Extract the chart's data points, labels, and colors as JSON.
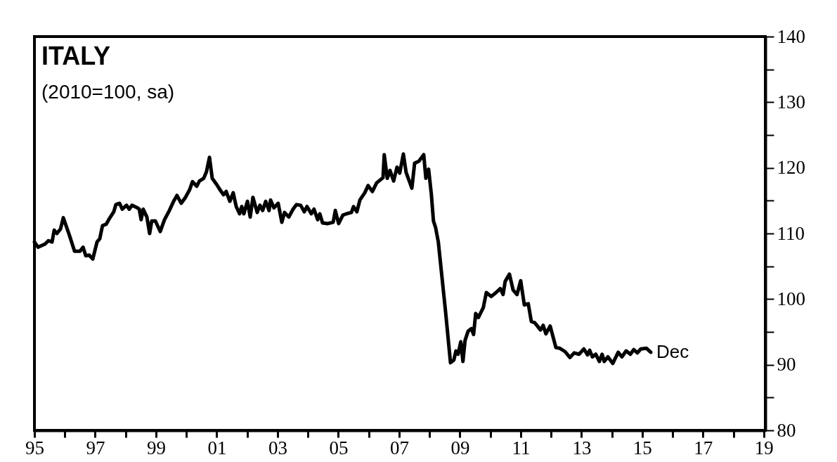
{
  "chart_data": {
    "type": "line",
    "title": "ITALY",
    "subtitle": "(2010=100, sa)",
    "x": [
      1995.0,
      1995.12,
      1995.35,
      1995.46,
      1995.58,
      1995.65,
      1995.74,
      1995.86,
      1995.95,
      1996.16,
      1996.32,
      1996.5,
      1996.6,
      1996.69,
      1996.8,
      1996.92,
      1997.06,
      1997.15,
      1997.24,
      1997.36,
      1997.47,
      1997.61,
      1997.68,
      1997.8,
      1997.89,
      1998.03,
      1998.12,
      1998.21,
      1998.35,
      1998.45,
      1998.51,
      1998.58,
      1998.7,
      1998.79,
      1998.86,
      1998.98,
      1999.14,
      1999.28,
      1999.44,
      1999.58,
      1999.69,
      1999.83,
      1999.97,
      2000.11,
      2000.2,
      2000.34,
      2000.43,
      2000.57,
      2000.66,
      2000.76,
      2000.85,
      2000.99,
      2001.1,
      2001.22,
      2001.31,
      2001.43,
      2001.54,
      2001.64,
      2001.75,
      2001.82,
      2001.89,
      2002.01,
      2002.1,
      2002.19,
      2002.33,
      2002.42,
      2002.51,
      2002.61,
      2002.72,
      2002.77,
      2002.88,
      2003.02,
      2003.14,
      2003.23,
      2003.37,
      2003.51,
      2003.62,
      2003.76,
      2003.88,
      2003.97,
      2004.11,
      2004.2,
      2004.32,
      2004.39,
      2004.48,
      2004.64,
      2004.83,
      2004.9,
      2005.01,
      2005.15,
      2005.27,
      2005.43,
      2005.5,
      2005.61,
      2005.71,
      2005.87,
      2005.98,
      2006.12,
      2006.26,
      2006.47,
      2006.51,
      2006.61,
      2006.7,
      2006.82,
      2006.93,
      2007.02,
      2007.14,
      2007.23,
      2007.42,
      2007.51,
      2007.65,
      2007.81,
      2007.88,
      2007.97,
      2008.06,
      2008.13,
      2008.2,
      2008.29,
      2008.53,
      2008.69,
      2008.8,
      2008.87,
      2008.94,
      2009.03,
      2009.1,
      2009.17,
      2009.27,
      2009.38,
      2009.45,
      2009.52,
      2009.61,
      2009.77,
      2009.87,
      2010.03,
      2010.19,
      2010.33,
      2010.42,
      2010.49,
      2010.63,
      2010.75,
      2010.88,
      2011.0,
      2011.12,
      2011.25,
      2011.35,
      2011.46,
      2011.55,
      2011.65,
      2011.74,
      2011.83,
      2011.97,
      2012.16,
      2012.29,
      2012.46,
      2012.62,
      2012.76,
      2012.92,
      2013.08,
      2013.2,
      2013.27,
      2013.36,
      2013.47,
      2013.59,
      2013.68,
      2013.75,
      2013.87,
      2014.03,
      2014.21,
      2014.33,
      2014.47,
      2014.61,
      2014.72,
      2014.84,
      2014.95,
      2015.14,
      2015.28
    ],
    "series": [
      {
        "color": "#000000",
        "values": [
          108.7,
          107.9,
          108.4,
          108.9,
          108.7,
          110.5,
          110.0,
          110.7,
          112.4,
          109.6,
          107.3,
          107.3,
          107.9,
          106.6,
          106.7,
          106.1,
          108.7,
          109.2,
          111.2,
          111.4,
          112.3,
          113.3,
          114.4,
          114.6,
          113.7,
          114.3,
          113.7,
          114.3,
          114.0,
          113.7,
          112.1,
          113.7,
          112.5,
          110.0,
          111.9,
          111.9,
          110.3,
          112.1,
          113.5,
          114.9,
          115.8,
          114.6,
          115.5,
          116.7,
          117.9,
          117.2,
          118.0,
          118.4,
          119.4,
          121.6,
          118.4,
          117.5,
          116.7,
          115.9,
          116.4,
          114.9,
          116.2,
          114.1,
          113.0,
          114.1,
          113.0,
          114.9,
          112.5,
          115.5,
          113.2,
          114.3,
          113.5,
          114.9,
          113.5,
          115.1,
          113.9,
          114.6,
          111.7,
          113.2,
          112.5,
          113.7,
          114.4,
          114.3,
          113.3,
          114.1,
          113.0,
          113.7,
          112.1,
          113.0,
          111.6,
          111.5,
          111.7,
          113.5,
          111.5,
          112.8,
          113.0,
          113.2,
          114.1,
          113.3,
          115.1,
          116.2,
          117.3,
          116.4,
          117.7,
          118.5,
          122.0,
          118.4,
          119.6,
          118.0,
          120.1,
          119.2,
          122.1,
          119.3,
          116.9,
          120.7,
          121.0,
          122.0,
          118.4,
          119.8,
          116.0,
          111.9,
          110.9,
          108.7,
          98.0,
          90.3,
          90.7,
          92.1,
          91.6,
          93.5,
          90.5,
          93.7,
          95.1,
          95.5,
          94.6,
          97.8,
          97.2,
          98.7,
          101.0,
          100.4,
          101.0,
          101.6,
          100.7,
          102.7,
          103.8,
          101.4,
          100.7,
          102.8,
          99.1,
          99.3,
          96.6,
          96.4,
          95.9,
          95.3,
          96.0,
          94.7,
          95.9,
          92.6,
          92.5,
          92.0,
          91.1,
          91.8,
          91.6,
          92.4,
          91.5,
          92.2,
          91.2,
          91.6,
          90.5,
          91.6,
          90.5,
          91.2,
          90.2,
          91.9,
          91.2,
          92.1,
          91.6,
          92.3,
          91.8,
          92.4,
          92.5,
          91.9
        ]
      }
    ],
    "annotations": [
      {
        "text": "Dec",
        "x": 2015.28,
        "y": 91.9
      }
    ],
    "xlim": [
      1995,
      2019.05
    ],
    "xticks": [
      {
        "value": 1995,
        "label": "95"
      },
      {
        "value": 1996,
        "label": null
      },
      {
        "value": 1997,
        "label": "97"
      },
      {
        "value": 1998,
        "label": null
      },
      {
        "value": 1999,
        "label": "99"
      },
      {
        "value": 2000,
        "label": null
      },
      {
        "value": 2001,
        "label": "01"
      },
      {
        "value": 2002,
        "label": null
      },
      {
        "value": 2003,
        "label": "03"
      },
      {
        "value": 2004,
        "label": null
      },
      {
        "value": 2005,
        "label": "05"
      },
      {
        "value": 2006,
        "label": null
      },
      {
        "value": 2007,
        "label": "07"
      },
      {
        "value": 2008,
        "label": null
      },
      {
        "value": 2009,
        "label": "09"
      },
      {
        "value": 2010,
        "label": null
      },
      {
        "value": 2011,
        "label": "11"
      },
      {
        "value": 2012,
        "label": null
      },
      {
        "value": 2013,
        "label": "13"
      },
      {
        "value": 2014,
        "label": null
      },
      {
        "value": 2015,
        "label": "15"
      },
      {
        "value": 2016,
        "label": null
      },
      {
        "value": 2017,
        "label": "17"
      },
      {
        "value": 2018,
        "label": null
      },
      {
        "value": 2019,
        "label": "19"
      }
    ],
    "ylim": [
      80,
      140
    ],
    "yticks": [
      80,
      {
        "value": 85,
        "label": null
      },
      90,
      {
        "value": 95,
        "label": null
      },
      100,
      {
        "value": 105,
        "label": null
      },
      110,
      {
        "value": 115,
        "label": null
      },
      120,
      {
        "value": 125,
        "label": null
      },
      130,
      {
        "value": 135,
        "label": null
      },
      140
    ],
    "grid": false,
    "legend": false,
    "marker": "none",
    "line_style": "solid"
  }
}
